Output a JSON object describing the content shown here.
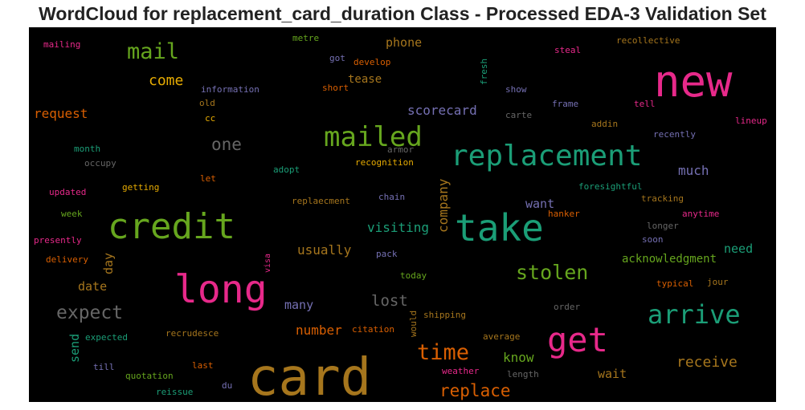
{
  "chart_data": {
    "type": "wordcloud",
    "title": "WordCloud for replacement_card_duration Class - Processed EDA-3 Validation Set",
    "background": "#000000",
    "words": [
      {
        "text": "card",
        "size": 64,
        "color": "#a6761d"
      },
      {
        "text": "new",
        "size": 54,
        "color": "#e7298a"
      },
      {
        "text": "long",
        "size": 48,
        "color": "#e7298a"
      },
      {
        "text": "take",
        "size": 46,
        "color": "#1b9e77"
      },
      {
        "text": "credit",
        "size": 44,
        "color": "#66a61e"
      },
      {
        "text": "get",
        "size": 42,
        "color": "#e7298a"
      },
      {
        "text": "replacement",
        "size": 36,
        "color": "#1b9e77"
      },
      {
        "text": "mailed",
        "size": 34,
        "color": "#66a61e"
      },
      {
        "text": "arrive",
        "size": 32,
        "color": "#1b9e77"
      },
      {
        "text": "mail",
        "size": 27,
        "color": "#66a61e"
      },
      {
        "text": "time",
        "size": 27,
        "color": "#d95f02"
      },
      {
        "text": "stolen",
        "size": 25,
        "color": "#66a61e"
      },
      {
        "text": "expect",
        "size": 23,
        "color": "#666666"
      },
      {
        "text": "one",
        "size": 21,
        "color": "#666666"
      },
      {
        "text": "replace",
        "size": 21,
        "color": "#d95f02"
      },
      {
        "text": "lost",
        "size": 19,
        "color": "#666666"
      },
      {
        "text": "come",
        "size": 18,
        "color": "#e6ab02"
      },
      {
        "text": "receive",
        "size": 18,
        "color": "#a6761d"
      },
      {
        "text": "company",
        "size": 16,
        "color": "#a6761d"
      },
      {
        "text": "request",
        "size": 16,
        "color": "#d95f02"
      },
      {
        "text": "scorecard",
        "size": 16,
        "color": "#7570b3"
      },
      {
        "text": "visiting",
        "size": 16,
        "color": "#1b9e77"
      },
      {
        "text": "usually",
        "size": 16,
        "color": "#a6761d"
      },
      {
        "text": "much",
        "size": 16,
        "color": "#7570b3"
      },
      {
        "text": "number",
        "size": 16,
        "color": "#d95f02"
      },
      {
        "text": "know",
        "size": 16,
        "color": "#66a61e"
      },
      {
        "text": "want",
        "size": 15,
        "color": "#7570b3"
      },
      {
        "text": "phone",
        "size": 15,
        "color": "#a6761d"
      },
      {
        "text": "date",
        "size": 15,
        "color": "#a6761d"
      },
      {
        "text": "day",
        "size": 15,
        "color": "#a6761d"
      },
      {
        "text": "need",
        "size": 15,
        "color": "#1b9e77"
      },
      {
        "text": "wait",
        "size": 15,
        "color": "#a6761d"
      },
      {
        "text": "many",
        "size": 15,
        "color": "#7570b3"
      },
      {
        "text": "send",
        "size": 15,
        "color": "#1b9e77"
      },
      {
        "text": "tease",
        "size": 14,
        "color": "#a6761d"
      },
      {
        "text": "acknowledgment",
        "size": 14,
        "color": "#66a61e"
      },
      {
        "text": "mailing",
        "size": 11,
        "color": "#e7298a"
      },
      {
        "text": "metre",
        "size": 11,
        "color": "#66a61e"
      },
      {
        "text": "got",
        "size": 11,
        "color": "#7570b3"
      },
      {
        "text": "develop",
        "size": 11,
        "color": "#d95f02"
      },
      {
        "text": "steal",
        "size": 11,
        "color": "#e7298a"
      },
      {
        "text": "recollective",
        "size": 11,
        "color": "#a6761d"
      },
      {
        "text": "fresh",
        "size": 11,
        "color": "#1b9e77"
      },
      {
        "text": "information",
        "size": 11,
        "color": "#7570b3"
      },
      {
        "text": "short",
        "size": 11,
        "color": "#d95f02"
      },
      {
        "text": "show",
        "size": 11,
        "color": "#7570b3"
      },
      {
        "text": "old",
        "size": 11,
        "color": "#a6761d"
      },
      {
        "text": "frame",
        "size": 11,
        "color": "#7570b3"
      },
      {
        "text": "tell",
        "size": 11,
        "color": "#e7298a"
      },
      {
        "text": "carte",
        "size": 11,
        "color": "#666666"
      },
      {
        "text": "cc",
        "size": 11,
        "color": "#e6ab02"
      },
      {
        "text": "addin",
        "size": 11,
        "color": "#a6761d"
      },
      {
        "text": "lineup",
        "size": 11,
        "color": "#e7298a"
      },
      {
        "text": "recently",
        "size": 11,
        "color": "#7570b3"
      },
      {
        "text": "month",
        "size": 11,
        "color": "#1b9e77"
      },
      {
        "text": "armor",
        "size": 11,
        "color": "#666666"
      },
      {
        "text": "recognition",
        "size": 11,
        "color": "#e6ab02"
      },
      {
        "text": "occupy",
        "size": 11,
        "color": "#666666"
      },
      {
        "text": "adopt",
        "size": 11,
        "color": "#1b9e77"
      },
      {
        "text": "let",
        "size": 11,
        "color": "#d95f02"
      },
      {
        "text": "getting",
        "size": 11,
        "color": "#e6ab02"
      },
      {
        "text": "foresightful",
        "size": 11,
        "color": "#1b9e77"
      },
      {
        "text": "updated",
        "size": 11,
        "color": "#e7298a"
      },
      {
        "text": "chain",
        "size": 11,
        "color": "#7570b3"
      },
      {
        "text": "tracking",
        "size": 11,
        "color": "#a6761d"
      },
      {
        "text": "replaecment",
        "size": 11,
        "color": "#a6761d"
      },
      {
        "text": "week",
        "size": 11,
        "color": "#66a61e"
      },
      {
        "text": "hanker",
        "size": 11,
        "color": "#d95f02"
      },
      {
        "text": "anytime",
        "size": 11,
        "color": "#e7298a"
      },
      {
        "text": "longer",
        "size": 11,
        "color": "#666666"
      },
      {
        "text": "presently",
        "size": 11,
        "color": "#e7298a"
      },
      {
        "text": "soon",
        "size": 11,
        "color": "#7570b3"
      },
      {
        "text": "pack",
        "size": 11,
        "color": "#7570b3"
      },
      {
        "text": "delivery",
        "size": 11,
        "color": "#d95f02"
      },
      {
        "text": "visa",
        "size": 10,
        "color": "#e7298a"
      },
      {
        "text": "today",
        "size": 11,
        "color": "#66a61e"
      },
      {
        "text": "typical",
        "size": 11,
        "color": "#d95f02"
      },
      {
        "text": "jour",
        "size": 11,
        "color": "#a6761d"
      },
      {
        "text": "order",
        "size": 11,
        "color": "#666666"
      },
      {
        "text": "shipping",
        "size": 11,
        "color": "#a6761d"
      },
      {
        "text": "would",
        "size": 11,
        "color": "#a6761d"
      },
      {
        "text": "citation",
        "size": 11,
        "color": "#d95f02"
      },
      {
        "text": "recrudesce",
        "size": 11,
        "color": "#a6761d"
      },
      {
        "text": "expected",
        "size": 11,
        "color": "#1b9e77"
      },
      {
        "text": "average",
        "size": 11,
        "color": "#a6761d"
      },
      {
        "text": "till",
        "size": 11,
        "color": "#7570b3"
      },
      {
        "text": "last",
        "size": 11,
        "color": "#d95f02"
      },
      {
        "text": "quotation",
        "size": 11,
        "color": "#66a61e"
      },
      {
        "text": "weather",
        "size": 11,
        "color": "#e7298a"
      },
      {
        "text": "length",
        "size": 11,
        "color": "#666666"
      },
      {
        "text": "du",
        "size": 11,
        "color": "#7570b3"
      },
      {
        "text": "reissue",
        "size": 11,
        "color": "#1b9e77"
      }
    ]
  }
}
